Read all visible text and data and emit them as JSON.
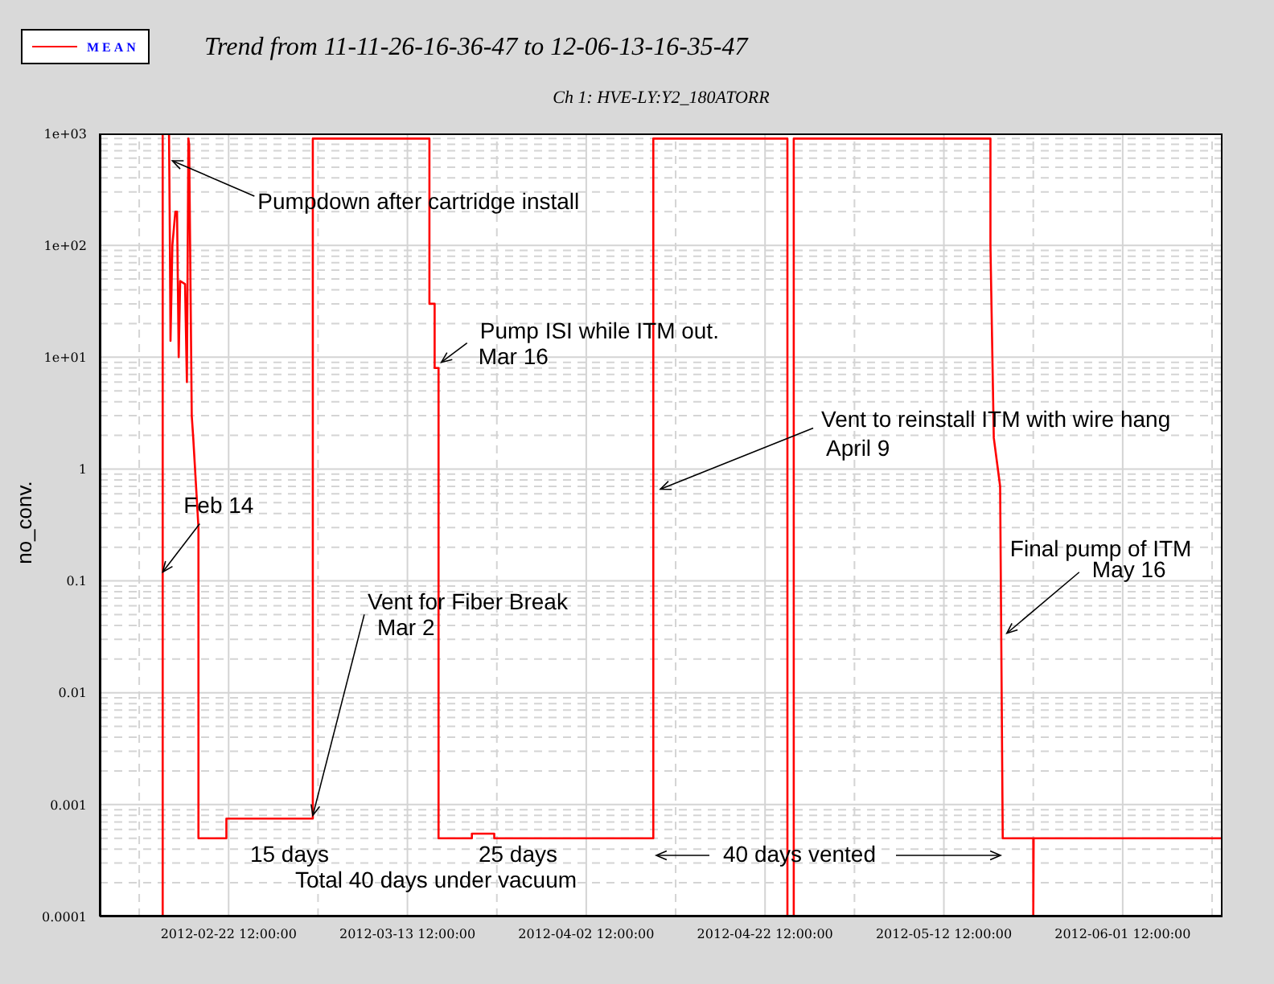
{
  "chart_data": {
    "type": "line",
    "title": "Trend from 11-11-26-16-36-47 to 12-06-13-16-35-47",
    "subtitle": "Ch 1: HVE-LY:Y2_180ATORR",
    "ylabel": "no_conv.",
    "log": true,
    "grid": true,
    "legend": "top left",
    "xlim": [
      "2012-02-08T02:00",
      "2012-06-12T16:00"
    ],
    "xticks": [
      {
        "value": "2012-02-12T12:00",
        "label": null
      },
      {
        "value": "2012-02-22T12:00",
        "label": "2012-02-22 12:00:00"
      },
      {
        "value": "2012-03-03T12:00",
        "label": null
      },
      {
        "value": "2012-03-13T12:00",
        "label": "2012-03-13 12:00:00"
      },
      {
        "value": "2012-03-23T12:00",
        "label": null
      },
      {
        "value": "2012-04-02T12:00",
        "label": "2012-04-02 12:00:00"
      },
      {
        "value": "2012-04-12T12:00",
        "label": null
      },
      {
        "value": "2012-04-22T12:00",
        "label": "2012-04-22 12:00:00"
      },
      {
        "value": "2012-05-02T12:00",
        "label": null
      },
      {
        "value": "2012-05-12T12:00",
        "label": "2012-05-12 12:00:00"
      },
      {
        "value": "2012-05-22T12:00",
        "label": null
      },
      {
        "value": "2012-06-01T12:00",
        "label": "2012-06-01 12:00:00"
      },
      {
        "value": "2012-06-11T12:00",
        "label": null
      }
    ],
    "ylim": [
      0.0001,
      1000
    ],
    "yticks": [
      0.0001,
      {
        "value": 0.0002,
        "label": null
      },
      {
        "value": 0.0003,
        "label": null
      },
      {
        "value": 0.0004,
        "label": null
      },
      {
        "value": 0.0005,
        "label": null
      },
      {
        "value": 0.0006,
        "label": null
      },
      {
        "value": 0.0007,
        "label": null
      },
      {
        "value": 0.0008,
        "label": null
      },
      {
        "value": 0.0009,
        "label": null
      },
      0.001,
      {
        "value": 0.002,
        "label": null
      },
      {
        "value": 0.003,
        "label": null
      },
      {
        "value": 0.004,
        "label": null
      },
      {
        "value": 0.005,
        "label": null
      },
      {
        "value": 0.006,
        "label": null
      },
      {
        "value": 0.007,
        "label": null
      },
      {
        "value": 0.008,
        "label": null
      },
      {
        "value": 0.009,
        "label": null
      },
      0.01,
      {
        "value": 0.02,
        "label": null
      },
      {
        "value": 0.03,
        "label": null
      },
      {
        "value": 0.04,
        "label": null
      },
      {
        "value": 0.05,
        "label": null
      },
      {
        "value": 0.06,
        "label": null
      },
      {
        "value": 0.07,
        "label": null
      },
      {
        "value": 0.08,
        "label": null
      },
      {
        "value": 0.09,
        "label": null
      },
      0.1,
      {
        "value": 0.2,
        "label": null
      },
      {
        "value": 0.3,
        "label": null
      },
      {
        "value": 0.4,
        "label": null
      },
      {
        "value": 0.5,
        "label": null
      },
      {
        "value": 0.6,
        "label": null
      },
      {
        "value": 0.7,
        "label": null
      },
      {
        "value": 0.8,
        "label": null
      },
      {
        "value": 0.9,
        "label": null
      },
      1,
      {
        "value": 2,
        "label": null
      },
      {
        "value": 3,
        "label": null
      },
      {
        "value": 4,
        "label": null
      },
      {
        "value": 5,
        "label": null
      },
      {
        "value": 6,
        "label": null
      },
      {
        "value": 7,
        "label": null
      },
      {
        "value": 8,
        "label": null
      },
      {
        "value": 9,
        "label": null
      },
      {
        "value": 10,
        "label": "1e+01"
      },
      {
        "value": 20,
        "label": null
      },
      {
        "value": 30,
        "label": null
      },
      {
        "value": 40,
        "label": null
      },
      {
        "value": 50,
        "label": null
      },
      {
        "value": 60,
        "label": null
      },
      {
        "value": 70,
        "label": null
      },
      {
        "value": 80,
        "label": null
      },
      {
        "value": 90,
        "label": null
      },
      {
        "value": 100,
        "label": "1e+02"
      },
      {
        "value": 200,
        "label": null
      },
      {
        "value": 300,
        "label": null
      },
      {
        "value": 400,
        "label": null
      },
      {
        "value": 500,
        "label": null
      },
      {
        "value": 600,
        "label": null
      },
      {
        "value": 700,
        "label": null
      },
      {
        "value": 800,
        "label": null
      },
      {
        "value": 900,
        "label": null
      },
      {
        "value": 1000,
        "label": "1e+03"
      }
    ],
    "x": [
      "2012-02-15T03:00",
      "2012-02-15T03:00",
      "2012-02-15T20:00",
      "2012-02-15T22:00",
      "2012-02-16T00:00",
      "2012-02-16T05:00",
      "2012-02-16T13:00",
      "2012-02-16T17:30",
      "2012-02-16T22:00",
      "2012-02-17T02:00",
      "2012-02-17T15:00",
      "2012-02-17T20:00",
      "2012-02-18T00:00",
      "2012-02-18T02:00",
      "2012-02-18T09:00",
      "2012-02-18T13:00",
      "2012-02-19T03:00",
      "2012-02-19T03:00",
      "2012-02-22T06:00",
      "2012-02-22T06:00",
      "2012-03-02T22:00",
      "2012-03-02T22:00",
      "2012-03-15T23:00",
      "2012-03-15T23:00",
      "2012-03-16T13:00",
      "2012-03-16T13:00",
      "2012-03-16T23:30",
      "2012-03-16T23:30",
      "2012-03-20T17:00",
      "2012-03-20T17:00",
      "2012-03-23T05:00",
      "2012-03-23T05:00",
      "2012-04-10T00:00",
      "2012-04-10T00:00",
      "2012-04-25T00:00",
      "2012-04-25T00:00",
      "2012-04-25T17:00",
      "2012-04-25T17:00",
      "2012-05-17T17:00",
      "2012-05-17T17:00",
      "2012-05-18T02:00",
      "2012-05-18T19:00",
      "2012-05-19T02:00",
      "2012-05-22T12:00",
      "2012-05-22T12:00",
      "2012-05-22T13:00",
      "2012-06-12T16:00"
    ],
    "series": [
      {
        "name": "MEAN",
        "color": "#ff0000",
        "values": [
          0.0001,
          1000,
          1000,
          150,
          14,
          100,
          200,
          200,
          10,
          48,
          45,
          6,
          900,
          800,
          3,
          1.9,
          0.3,
          0.0005,
          0.0005,
          0.00075,
          0.00075,
          900,
          900,
          30,
          30,
          8,
          8,
          0.0005,
          0.0005,
          0.00055,
          0.00055,
          0.0005,
          0.0005,
          900,
          900,
          0.0001,
          0.0001,
          900,
          900,
          100,
          1.9,
          0.7,
          0.0005,
          0.0005,
          0.0001,
          0.0005,
          0.0005
        ]
      }
    ],
    "annotations": [
      {
        "text": "Pumpdown after cartridge install",
        "x": "2012-02-16T05:00",
        "y": 570
      },
      {
        "text": "Feb 14",
        "x": "2012-02-15T03:00",
        "y": 0.12
      },
      {
        "text": "Pump ISI while ITM out.\nMar 16",
        "x": "2012-03-17T07:00",
        "y": 9
      },
      {
        "text": "Vent for Fiber Break\nMar 2",
        "x": "2012-03-02T22:00",
        "y": 0.0008
      },
      {
        "text": "Vent to reinstall ITM with wire hang\nApril 9",
        "x": "2012-04-10T19:00",
        "y": 0.66
      },
      {
        "text": "Final pump of ITM\nMay 16",
        "x": "2012-05-19T13:00",
        "y": 0.034
      },
      "15 days",
      "Total 40 days under vacuum",
      "25 days",
      "40 days vented"
    ]
  }
}
